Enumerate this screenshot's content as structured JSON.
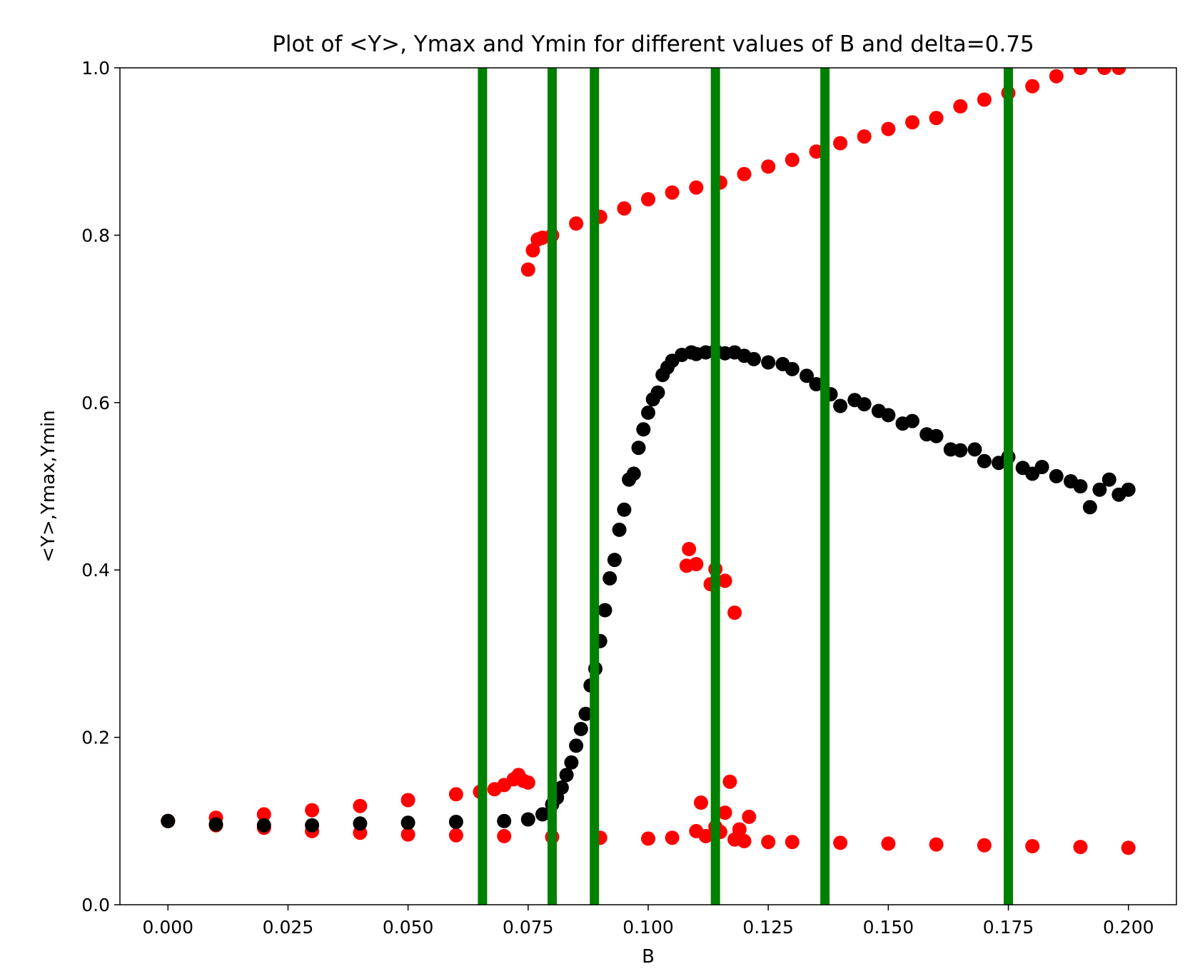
{
  "chart_data": {
    "type": "scatter",
    "title": "Plot of <Y>, Ymax and Ymin for different values of B and delta=0.75",
    "xlabel": "B",
    "ylabel": "<Y>,Ymax,Ymin",
    "xlim": [
      -0.01,
      0.21
    ],
    "ylim": [
      0.0,
      1.0
    ],
    "x_ticks": [
      "0.000",
      "0.025",
      "0.050",
      "0.075",
      "0.100",
      "0.125",
      "0.150",
      "0.175",
      "0.200"
    ],
    "y_ticks": [
      "0.0",
      "0.2",
      "0.4",
      "0.6",
      "0.8",
      "1.0"
    ],
    "grid": false,
    "colors": {
      "mean": "#000000",
      "max": "#ff0000",
      "min": "#ff0000",
      "vlines": "#008000"
    },
    "vlines": [
      0.0655,
      0.08,
      0.0888,
      0.114,
      0.1368,
      0.175
    ],
    "series": [
      {
        "key": "ymax_upper",
        "points": [
          [
            0.075,
            0.759
          ],
          [
            0.076,
            0.782
          ],
          [
            0.077,
            0.795
          ],
          [
            0.078,
            0.797
          ],
          [
            0.08,
            0.8
          ],
          [
            0.085,
            0.814
          ],
          [
            0.09,
            0.822
          ],
          [
            0.095,
            0.832
          ],
          [
            0.1,
            0.843
          ],
          [
            0.105,
            0.851
          ],
          [
            0.11,
            0.857
          ],
          [
            0.115,
            0.863
          ],
          [
            0.12,
            0.873
          ],
          [
            0.125,
            0.882
          ],
          [
            0.13,
            0.89
          ],
          [
            0.135,
            0.9
          ],
          [
            0.14,
            0.91
          ],
          [
            0.145,
            0.918
          ],
          [
            0.15,
            0.927
          ],
          [
            0.155,
            0.935
          ],
          [
            0.16,
            0.94
          ],
          [
            0.165,
            0.954
          ],
          [
            0.17,
            0.962
          ],
          [
            0.175,
            0.97
          ],
          [
            0.18,
            0.978
          ],
          [
            0.185,
            0.99
          ],
          [
            0.19,
            1.0
          ],
          [
            0.195,
            1.0
          ],
          [
            0.198,
            1.0
          ]
        ]
      },
      {
        "key": "ymax_lower",
        "points": [
          [
            0.0,
            0.1
          ],
          [
            0.01,
            0.104
          ],
          [
            0.02,
            0.108
          ],
          [
            0.03,
            0.113
          ],
          [
            0.04,
            0.118
          ],
          [
            0.05,
            0.125
          ],
          [
            0.06,
            0.132
          ],
          [
            0.065,
            0.135
          ],
          [
            0.068,
            0.138
          ],
          [
            0.07,
            0.143
          ],
          [
            0.072,
            0.15
          ],
          [
            0.073,
            0.155
          ],
          [
            0.074,
            0.148
          ],
          [
            0.075,
            0.146
          ]
        ]
      },
      {
        "key": "ymin",
        "points": [
          [
            0.0,
            0.1
          ],
          [
            0.01,
            0.095
          ],
          [
            0.02,
            0.092
          ],
          [
            0.03,
            0.088
          ],
          [
            0.04,
            0.086
          ],
          [
            0.05,
            0.084
          ],
          [
            0.06,
            0.083
          ],
          [
            0.07,
            0.082
          ],
          [
            0.08,
            0.081
          ],
          [
            0.09,
            0.08
          ],
          [
            0.1,
            0.079
          ],
          [
            0.105,
            0.08
          ],
          [
            0.11,
            0.088
          ],
          [
            0.112,
            0.082
          ],
          [
            0.115,
            0.087
          ],
          [
            0.118,
            0.078
          ],
          [
            0.12,
            0.076
          ],
          [
            0.125,
            0.075
          ],
          [
            0.13,
            0.075
          ],
          [
            0.14,
            0.074
          ],
          [
            0.15,
            0.073
          ],
          [
            0.16,
            0.072
          ],
          [
            0.17,
            0.071
          ],
          [
            0.18,
            0.07
          ],
          [
            0.19,
            0.069
          ],
          [
            0.2,
            0.068
          ]
        ]
      },
      {
        "key": "y_scattered",
        "points": [
          [
            0.108,
            0.405
          ],
          [
            0.1085,
            0.425
          ],
          [
            0.11,
            0.407
          ],
          [
            0.113,
            0.383
          ],
          [
            0.114,
            0.401
          ],
          [
            0.116,
            0.387
          ],
          [
            0.118,
            0.349
          ],
          [
            0.111,
            0.122
          ],
          [
            0.114,
            0.093
          ],
          [
            0.116,
            0.11
          ],
          [
            0.117,
            0.147
          ],
          [
            0.119,
            0.09
          ],
          [
            0.121,
            0.105
          ]
        ]
      },
      {
        "key": "ymean",
        "points": [
          [
            0.0,
            0.1
          ],
          [
            0.01,
            0.096
          ],
          [
            0.02,
            0.095
          ],
          [
            0.03,
            0.095
          ],
          [
            0.04,
            0.097
          ],
          [
            0.05,
            0.098
          ],
          [
            0.06,
            0.099
          ],
          [
            0.07,
            0.1
          ],
          [
            0.075,
            0.102
          ],
          [
            0.078,
            0.108
          ],
          [
            0.08,
            0.12
          ],
          [
            0.081,
            0.128
          ],
          [
            0.082,
            0.14
          ],
          [
            0.083,
            0.155
          ],
          [
            0.084,
            0.17
          ],
          [
            0.085,
            0.19
          ],
          [
            0.086,
            0.21
          ],
          [
            0.087,
            0.228
          ],
          [
            0.088,
            0.262
          ],
          [
            0.089,
            0.282
          ],
          [
            0.09,
            0.315
          ],
          [
            0.091,
            0.352
          ],
          [
            0.092,
            0.39
          ],
          [
            0.093,
            0.412
          ],
          [
            0.094,
            0.448
          ],
          [
            0.095,
            0.472
          ],
          [
            0.096,
            0.508
          ],
          [
            0.097,
            0.515
          ],
          [
            0.098,
            0.546
          ],
          [
            0.099,
            0.568
          ],
          [
            0.1,
            0.588
          ],
          [
            0.101,
            0.604
          ],
          [
            0.102,
            0.612
          ],
          [
            0.103,
            0.633
          ],
          [
            0.104,
            0.642
          ],
          [
            0.105,
            0.65
          ],
          [
            0.107,
            0.657
          ],
          [
            0.109,
            0.66
          ],
          [
            0.11,
            0.658
          ],
          [
            0.112,
            0.66
          ],
          [
            0.114,
            0.662
          ],
          [
            0.116,
            0.659
          ],
          [
            0.118,
            0.66
          ],
          [
            0.12,
            0.656
          ],
          [
            0.122,
            0.652
          ],
          [
            0.125,
            0.648
          ],
          [
            0.128,
            0.646
          ],
          [
            0.13,
            0.64
          ],
          [
            0.133,
            0.632
          ],
          [
            0.135,
            0.622
          ],
          [
            0.138,
            0.61
          ],
          [
            0.14,
            0.596
          ],
          [
            0.143,
            0.603
          ],
          [
            0.145,
            0.598
          ],
          [
            0.148,
            0.59
          ],
          [
            0.15,
            0.585
          ],
          [
            0.153,
            0.575
          ],
          [
            0.155,
            0.578
          ],
          [
            0.158,
            0.562
          ],
          [
            0.16,
            0.56
          ],
          [
            0.163,
            0.544
          ],
          [
            0.165,
            0.543
          ],
          [
            0.168,
            0.544
          ],
          [
            0.17,
            0.53
          ],
          [
            0.173,
            0.528
          ],
          [
            0.175,
            0.535
          ],
          [
            0.178,
            0.522
          ],
          [
            0.18,
            0.515
          ],
          [
            0.182,
            0.523
          ],
          [
            0.185,
            0.512
          ],
          [
            0.188,
            0.506
          ],
          [
            0.19,
            0.5
          ],
          [
            0.192,
            0.475
          ],
          [
            0.194,
            0.496
          ],
          [
            0.196,
            0.508
          ],
          [
            0.198,
            0.49
          ],
          [
            0.2,
            0.496
          ]
        ]
      }
    ]
  }
}
